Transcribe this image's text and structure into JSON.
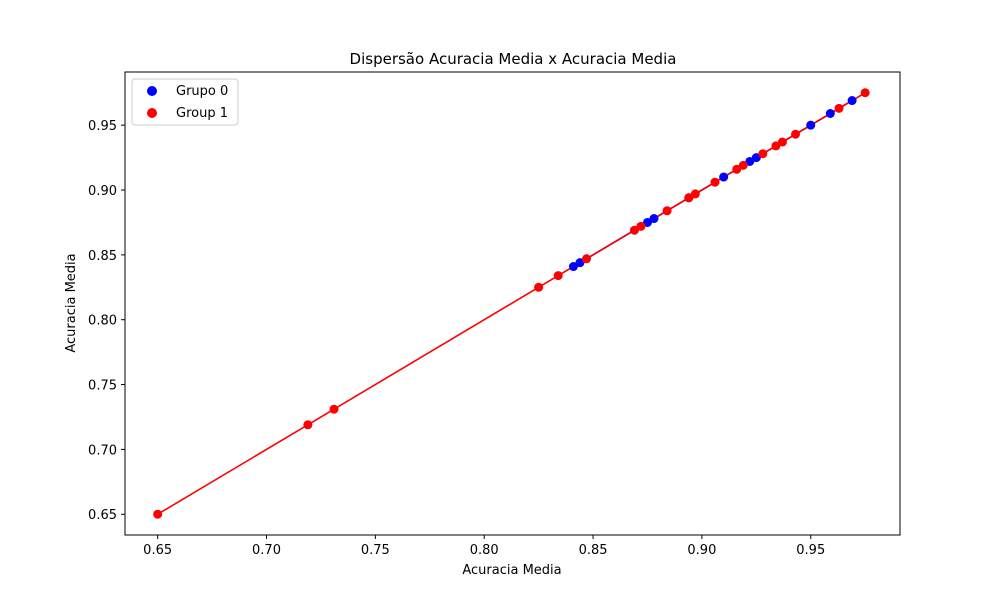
{
  "chart_data": {
    "type": "scatter",
    "title": "Dispersão Acuracia Media x Acuracia Media",
    "xlabel": "Acuracia Media",
    "ylabel": "Acuracia Media",
    "xlim": [
      0.635,
      0.991
    ],
    "ylim": [
      0.634,
      0.991
    ],
    "xticks": [
      0.65,
      0.7,
      0.75,
      0.8,
      0.85,
      0.9,
      0.95
    ],
    "xtick_labels": [
      "0.65",
      "0.70",
      "0.75",
      "0.80",
      "0.85",
      "0.90",
      "0.95"
    ],
    "yticks": [
      0.65,
      0.7,
      0.75,
      0.8,
      0.85,
      0.9,
      0.95
    ],
    "ytick_labels": [
      "0.65",
      "0.70",
      "0.75",
      "0.80",
      "0.85",
      "0.90",
      "0.95"
    ],
    "grid": false,
    "legend_position": "top-left",
    "series": [
      {
        "name": "Grupo 0",
        "color": "#0000ff",
        "x": [
          0.841,
          0.844,
          0.875,
          0.878,
          0.894,
          0.91,
          0.922,
          0.925,
          0.95,
          0.959,
          0.969
        ],
        "y": [
          0.841,
          0.844,
          0.875,
          0.878,
          0.894,
          0.91,
          0.922,
          0.925,
          0.95,
          0.959,
          0.969
        ]
      },
      {
        "name": "Group 1",
        "color": "#ff0000",
        "x": [
          0.65,
          0.719,
          0.731,
          0.825,
          0.834,
          0.847,
          0.869,
          0.872,
          0.884,
          0.894,
          0.897,
          0.906,
          0.916,
          0.919,
          0.928,
          0.934,
          0.937,
          0.943,
          0.963,
          0.975
        ],
        "y": [
          0.65,
          0.719,
          0.731,
          0.825,
          0.834,
          0.847,
          0.869,
          0.872,
          0.884,
          0.894,
          0.897,
          0.906,
          0.916,
          0.919,
          0.928,
          0.934,
          0.937,
          0.943,
          0.963,
          0.975
        ]
      }
    ]
  }
}
